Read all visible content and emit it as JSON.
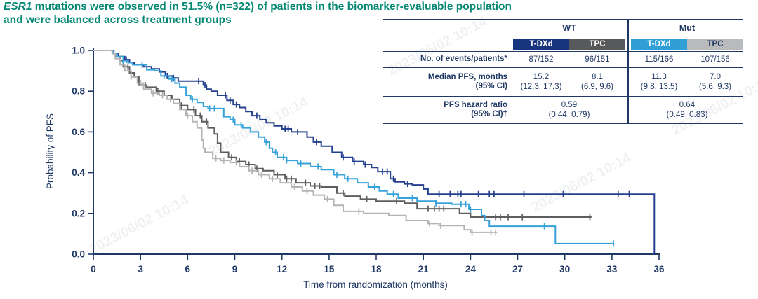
{
  "title": {
    "gene": "ESR1",
    "line1_rest": " mutations were observed in 51.5% (n=322) of patients in the biomarker-evaluable population",
    "line2": "and were balanced across treatment groups",
    "color": "#048873"
  },
  "watermark": {
    "text": "2023/06/02 10:14"
  },
  "table": {
    "group_headers": [
      "WT",
      "Mut"
    ],
    "arms": [
      {
        "label": "T-DXd",
        "bg": "#17357e",
        "fg": "#ffffff"
      },
      {
        "label": "TPC",
        "bg": "#58595b",
        "fg": "#ffffff"
      },
      {
        "label": "T-DXd",
        "bg": "#2f9fd6",
        "fg": "#ffffff"
      },
      {
        "label": "TPC",
        "bg": "#b9babc",
        "fg": "#1f3864"
      }
    ],
    "rows": {
      "events": {
        "label": "No. of events/patients*",
        "values": [
          "87/152",
          "96/151",
          "115/166",
          "107/156"
        ]
      },
      "median": {
        "label_line1": "Median PFS, months",
        "label_line2": "(95% CI)",
        "values": [
          "15.2",
          "8.1",
          "11.3",
          "7.0"
        ],
        "ci": [
          "(12.3, 17.3)",
          "(6.9, 9.6)",
          "(9.8, 13.5)",
          "(5.6, 9.3)"
        ]
      },
      "hr": {
        "label_line1": "PFS hazard ratio",
        "label_line2": "(95% CI)†",
        "values": [
          "0.59",
          "0.64"
        ],
        "ci": [
          "(0.44, 0.79)",
          "(0.49, 0.83)"
        ]
      }
    }
  },
  "chart_data": {
    "type": "line",
    "subtype": "kaplan-meier-step",
    "xlabel": "Time from randomization (months)",
    "ylabel": "Probability of PFS",
    "xlim": [
      0,
      36
    ],
    "ylim": [
      0.0,
      1.0
    ],
    "xticks": [
      0,
      3,
      6,
      9,
      12,
      15,
      18,
      21,
      24,
      27,
      30,
      33,
      36
    ],
    "yticks": [
      0.0,
      0.2,
      0.4,
      0.6,
      0.8,
      1.0
    ],
    "grid": false,
    "legend": "none (table acts as legend)",
    "axis_color": "#1f3864",
    "series": [
      {
        "name": "WT T-DXd",
        "color": "#24408f",
        "median_months": 15.2,
        "steps": [
          [
            0,
            1.0
          ],
          [
            1.3,
            0.985
          ],
          [
            1.6,
            0.97
          ],
          [
            2.0,
            0.955
          ],
          [
            2.3,
            0.94
          ],
          [
            2.6,
            0.93
          ],
          [
            3.2,
            0.92
          ],
          [
            3.7,
            0.91
          ],
          [
            4.2,
            0.895
          ],
          [
            4.6,
            0.875
          ],
          [
            5.0,
            0.865
          ],
          [
            5.4,
            0.85
          ],
          [
            7.0,
            0.83
          ],
          [
            7.2,
            0.81
          ],
          [
            7.5,
            0.8
          ],
          [
            7.9,
            0.78
          ],
          [
            8.5,
            0.755
          ],
          [
            8.9,
            0.735
          ],
          [
            9.3,
            0.72
          ],
          [
            9.7,
            0.7
          ],
          [
            10.1,
            0.68
          ],
          [
            10.6,
            0.66
          ],
          [
            11.0,
            0.645
          ],
          [
            11.5,
            0.63
          ],
          [
            12.0,
            0.615
          ],
          [
            12.6,
            0.6
          ],
          [
            13.6,
            0.575
          ],
          [
            14.0,
            0.55
          ],
          [
            14.5,
            0.53
          ],
          [
            15.2,
            0.5
          ],
          [
            15.8,
            0.475
          ],
          [
            16.5,
            0.455
          ],
          [
            17.2,
            0.44
          ],
          [
            17.7,
            0.425
          ],
          [
            18.1,
            0.405
          ],
          [
            18.9,
            0.37
          ],
          [
            19.2,
            0.355
          ],
          [
            19.8,
            0.345
          ],
          [
            20.3,
            0.34
          ],
          [
            21.0,
            0.32
          ],
          [
            21.3,
            0.295
          ],
          [
            35.6,
            0.295
          ],
          [
            35.7,
            0.0
          ]
        ],
        "censors": [
          2.1,
          4.7,
          5.1,
          6.7,
          7.1,
          8.4,
          8.7,
          9.1,
          10.4,
          12.2,
          12.4,
          13.0,
          14.2,
          15.9,
          16.6,
          17.3,
          18.4,
          18.7,
          19.1,
          20.0,
          22.0,
          22.7,
          23.2,
          23.4,
          24.5,
          25.2,
          25.5,
          27.4,
          29.9,
          33.4,
          34.1
        ]
      },
      {
        "name": "WT TPC",
        "color": "#5d5e60",
        "median_months": 8.1,
        "steps": [
          [
            0,
            1.0
          ],
          [
            1.2,
            0.985
          ],
          [
            1.4,
            0.97
          ],
          [
            1.7,
            0.95
          ],
          [
            1.9,
            0.92
          ],
          [
            2.3,
            0.89
          ],
          [
            2.6,
            0.87
          ],
          [
            2.9,
            0.83
          ],
          [
            3.4,
            0.82
          ],
          [
            4.0,
            0.8
          ],
          [
            4.5,
            0.78
          ],
          [
            5.0,
            0.76
          ],
          [
            5.5,
            0.73
          ],
          [
            6.0,
            0.71
          ],
          [
            6.5,
            0.68
          ],
          [
            6.9,
            0.65
          ],
          [
            7.3,
            0.62
          ],
          [
            7.7,
            0.59
          ],
          [
            7.9,
            0.545
          ],
          [
            8.1,
            0.5
          ],
          [
            8.6,
            0.475
          ],
          [
            9.1,
            0.455
          ],
          [
            9.7,
            0.44
          ],
          [
            10.3,
            0.42
          ],
          [
            10.8,
            0.41
          ],
          [
            11.5,
            0.39
          ],
          [
            12.2,
            0.37
          ],
          [
            12.9,
            0.35
          ],
          [
            13.8,
            0.335
          ],
          [
            14.5,
            0.33
          ],
          [
            15.5,
            0.3
          ],
          [
            16.0,
            0.285
          ],
          [
            17.0,
            0.27
          ],
          [
            18.0,
            0.26
          ],
          [
            19.8,
            0.25
          ],
          [
            20.6,
            0.223
          ],
          [
            23.3,
            0.2
          ],
          [
            24.0,
            0.182
          ],
          [
            31.7,
            0.182
          ]
        ],
        "censors": [
          2.2,
          3.3,
          4.1,
          5.6,
          6.4,
          6.8,
          7.2,
          8.8,
          9.3,
          9.9,
          10.4,
          11.7,
          12.3,
          12.6,
          13.5,
          14.1,
          14.4,
          15.9,
          17.4,
          19.3,
          21.3,
          21.7,
          22.0,
          22.3,
          25.6,
          25.9,
          26.4,
          27.3,
          31.6
        ]
      },
      {
        "name": "Mut T-DXd",
        "color": "#36a2da",
        "median_months": 11.3,
        "steps": [
          [
            0,
            1.0
          ],
          [
            1.3,
            0.985
          ],
          [
            1.5,
            0.97
          ],
          [
            1.9,
            0.95
          ],
          [
            2.2,
            0.94
          ],
          [
            2.5,
            0.93
          ],
          [
            3.4,
            0.905
          ],
          [
            3.9,
            0.9
          ],
          [
            4.3,
            0.875
          ],
          [
            4.8,
            0.86
          ],
          [
            5.2,
            0.84
          ],
          [
            5.5,
            0.82
          ],
          [
            5.9,
            0.78
          ],
          [
            6.2,
            0.76
          ],
          [
            6.6,
            0.745
          ],
          [
            7.0,
            0.725
          ],
          [
            7.3,
            0.715
          ],
          [
            8.3,
            0.675
          ],
          [
            8.7,
            0.66
          ],
          [
            9.0,
            0.635
          ],
          [
            9.5,
            0.62
          ],
          [
            10.0,
            0.6
          ],
          [
            10.5,
            0.575
          ],
          [
            10.9,
            0.55
          ],
          [
            11.2,
            0.52
          ],
          [
            11.4,
            0.5
          ],
          [
            11.7,
            0.475
          ],
          [
            12.3,
            0.46
          ],
          [
            13.0,
            0.445
          ],
          [
            13.8,
            0.43
          ],
          [
            14.5,
            0.415
          ],
          [
            15.3,
            0.39
          ],
          [
            16.0,
            0.37
          ],
          [
            16.8,
            0.35
          ],
          [
            17.5,
            0.33
          ],
          [
            18.2,
            0.31
          ],
          [
            18.7,
            0.295
          ],
          [
            19.4,
            0.275
          ],
          [
            20.6,
            0.26
          ],
          [
            21.8,
            0.25
          ],
          [
            22.8,
            0.245
          ],
          [
            23.9,
            0.22
          ],
          [
            24.7,
            0.19
          ],
          [
            24.9,
            0.165
          ],
          [
            25.2,
            0.137
          ],
          [
            29.4,
            0.052
          ],
          [
            33.1,
            0.052
          ]
        ],
        "censors": [
          1.9,
          3.1,
          4.5,
          5.0,
          6.3,
          7.4,
          7.7,
          8.9,
          9.4,
          11.0,
          11.6,
          12.1,
          12.3,
          13.2,
          14.3,
          15.5,
          16.2,
          17.9,
          19.1,
          20.3,
          21.8,
          23.4,
          23.7,
          24.0,
          28.7,
          33.1
        ]
      },
      {
        "name": "Mut TPC",
        "color": "#b3b4b6",
        "median_months": 7.0,
        "steps": [
          [
            0,
            1.0
          ],
          [
            1.2,
            0.985
          ],
          [
            1.4,
            0.96
          ],
          [
            1.7,
            0.93
          ],
          [
            2.0,
            0.9
          ],
          [
            2.4,
            0.87
          ],
          [
            2.8,
            0.84
          ],
          [
            3.2,
            0.81
          ],
          [
            3.7,
            0.79
          ],
          [
            4.2,
            0.78
          ],
          [
            4.7,
            0.76
          ],
          [
            5.1,
            0.74
          ],
          [
            5.5,
            0.71
          ],
          [
            5.9,
            0.68
          ],
          [
            6.3,
            0.65
          ],
          [
            6.6,
            0.62
          ],
          [
            6.9,
            0.56
          ],
          [
            7.0,
            0.52
          ],
          [
            7.1,
            0.5
          ],
          [
            7.6,
            0.47
          ],
          [
            8.1,
            0.46
          ],
          [
            8.7,
            0.45
          ],
          [
            9.3,
            0.43
          ],
          [
            9.9,
            0.41
          ],
          [
            10.5,
            0.39
          ],
          [
            11.2,
            0.37
          ],
          [
            11.9,
            0.35
          ],
          [
            12.6,
            0.33
          ],
          [
            13.3,
            0.31
          ],
          [
            14.0,
            0.29
          ],
          [
            14.7,
            0.27
          ],
          [
            15.3,
            0.24
          ],
          [
            15.9,
            0.21
          ],
          [
            17.2,
            0.2
          ],
          [
            18.8,
            0.19
          ],
          [
            19.9,
            0.165
          ],
          [
            21.3,
            0.15
          ],
          [
            22.0,
            0.14
          ],
          [
            23.6,
            0.12
          ],
          [
            24.0,
            0.107
          ],
          [
            25.7,
            0.107
          ]
        ],
        "censors": [
          2.4,
          3.0,
          3.8,
          4.4,
          4.9,
          6.0,
          7.8,
          8.3,
          9.1,
          10.1,
          10.7,
          11.4,
          12.8,
          13.6,
          14.9,
          16.9,
          21.4,
          22.1,
          24.1,
          25.3,
          25.6
        ]
      }
    ]
  }
}
